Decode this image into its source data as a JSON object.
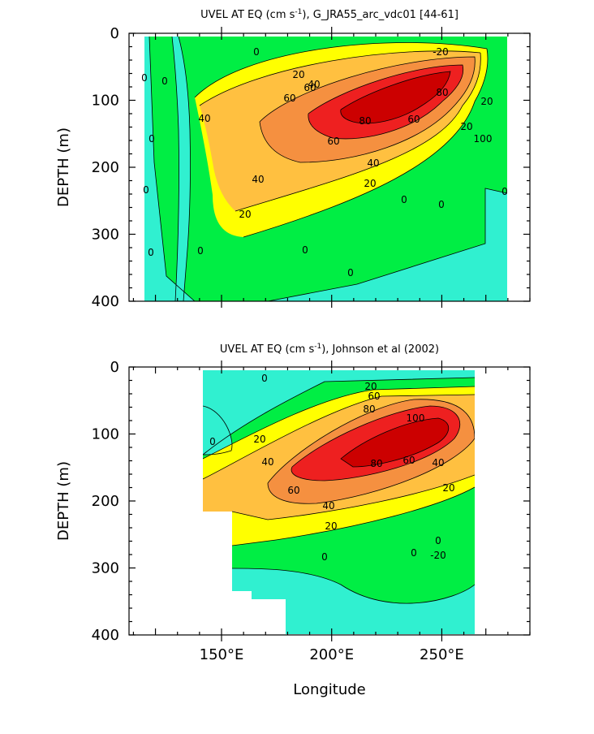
{
  "chart_data": [
    {
      "type": "heatmap",
      "subtype": "filled-contour",
      "title": "UVEL AT EQ (cm s⁻¹), G_JRA55_arc_vdc01 [44–61]",
      "title_parts": {
        "pre": "UVEL AT EQ (cm s",
        "sup": "-1",
        "post": "), G_JRA55_arc_vdc01 [44-61]"
      },
      "ylabel": "DEPTH (m)",
      "xlabel": "",
      "xlim": [
        108,
        290
      ],
      "ylim": [
        400,
        0
      ],
      "yticks": [
        "0",
        "100",
        "200",
        "300",
        "400"
      ],
      "xticks": [
        150,
        200,
        250
      ],
      "data_extent": {
        "lon": [
          118,
          280
        ],
        "depth": [
          5,
          400
        ]
      },
      "contour_levels": [
        -20,
        0,
        20,
        40,
        60,
        80,
        100
      ],
      "core": {
        "lon": 230,
        "depth": 110,
        "max_speed": 110
      },
      "contour_labels": [
        "0",
        "0",
        "0",
        "0",
        "0",
        "0",
        "0",
        "0",
        "0",
        "0",
        "0",
        "20",
        "20",
        "20",
        "20",
        "20",
        "40",
        "40",
        "40",
        "40",
        "60",
        "60",
        "60",
        "60",
        "80",
        "80",
        "100",
        "0",
        "-20"
      ]
    },
    {
      "type": "heatmap",
      "subtype": "filled-contour",
      "title": "UVEL AT EQ (cm s⁻¹), Johnson et al (2002)",
      "title_parts": {
        "pre": "UVEL AT EQ (cm s",
        "sup": "-1",
        "post": "), Johnson et al (2002)"
      },
      "ylabel": "DEPTH (m)",
      "xlabel": "Longitude",
      "xlim": [
        108,
        290
      ],
      "ylim": [
        400,
        0
      ],
      "yticks": [
        "0",
        "100",
        "200",
        "300",
        "400"
      ],
      "xticks": [
        "150°E",
        "200°E",
        "250°E"
      ],
      "data_extent": {
        "lon": [
          143,
          265
        ],
        "depth": [
          10,
          400
        ]
      },
      "contour_levels": [
        -20,
        0,
        20,
        40,
        60,
        80,
        100
      ],
      "core": {
        "lon": 235,
        "depth": 95,
        "max_speed": 105
      },
      "contour_labels": [
        "0",
        "0",
        "0",
        "0",
        "20",
        "20",
        "20",
        "20",
        "40",
        "40",
        "40",
        "60",
        "60",
        "60",
        "80",
        "80",
        "100",
        "0",
        "-20"
      ]
    }
  ],
  "colors": {
    "lt_m20": "#00ffff",
    "m20_0": "#30f0d0",
    "0_20": "#00ee44",
    "20_40": "#ffff00",
    "40_60": "#ffc040",
    "60_80": "#f59040",
    "80_100": "#ee2020",
    "ge_100": "#cc0000"
  }
}
